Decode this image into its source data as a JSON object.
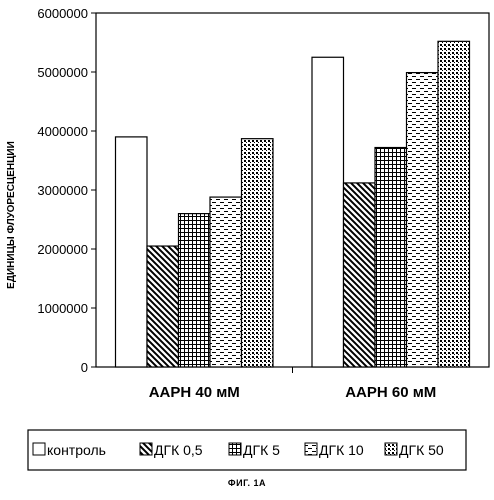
{
  "figure_caption": "ФИГ. 1А",
  "chart_data": {
    "type": "bar",
    "ylabel": "ЕДИНИЦЫ ФЛУОРЕСЦЕНЦИИ",
    "xlabel": "",
    "ylim": [
      0,
      6000000
    ],
    "yticks": [
      0,
      1000000,
      2000000,
      3000000,
      4000000,
      5000000,
      6000000
    ],
    "ytick_labels": [
      "0",
      "1000000",
      "2000000",
      "3000000",
      "4000000",
      "5000000",
      "6000000"
    ],
    "grid": false,
    "legend_position": "bottom",
    "categories": [
      "ААРН 40 мМ",
      "ААРН 60 мМ"
    ],
    "series": [
      {
        "name": "контроль",
        "pattern": "blank",
        "values": [
          3900000,
          5250000
        ]
      },
      {
        "name": "ДГК 0,5",
        "pattern": "diagonal",
        "values": [
          2050000,
          3120000
        ]
      },
      {
        "name": "ДГК 5",
        "pattern": "grid",
        "values": [
          2600000,
          3720000
        ]
      },
      {
        "name": "ДГК 10",
        "pattern": "dashes",
        "values": [
          2880000,
          4990000
        ]
      },
      {
        "name": "ДГК 50",
        "pattern": "dots",
        "values": [
          3870000,
          5520000
        ]
      }
    ]
  }
}
